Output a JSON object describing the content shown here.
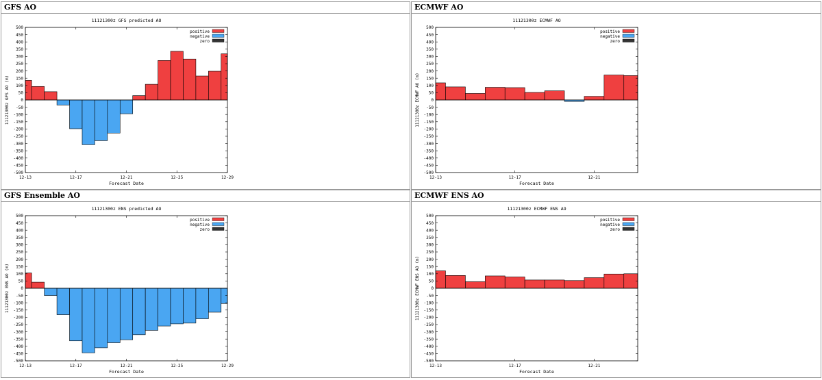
{
  "panels": [
    {
      "heading": "GFS AO",
      "chart_data": {
        "type": "bar",
        "title": "11121300z GFS predicted AO",
        "xlabel": "Forecast Date",
        "ylabel": "11121300z GFS AO (m)",
        "ylim": [
          -500,
          500
        ],
        "yticks": [
          500,
          450,
          400,
          350,
          300,
          250,
          200,
          150,
          100,
          50,
          0,
          -50,
          -100,
          -150,
          -200,
          -250,
          -300,
          -350,
          -400,
          -450,
          -500
        ],
        "xticks": [
          {
            "label": "12-13",
            "day": 0
          },
          {
            "label": "12-17",
            "day": 4
          },
          {
            "label": "12-21",
            "day": 8
          },
          {
            "label": "12-25",
            "day": 12
          },
          {
            "label": "12-29",
            "day": 16
          }
        ],
        "x_range": [
          0,
          16
        ],
        "legend": [
          {
            "label": "positive",
            "color": "#ef4040"
          },
          {
            "label": "negative",
            "color": "#4aa6f2"
          },
          {
            "label": "zero",
            "color": "#333333"
          }
        ],
        "legend_position": "top-right",
        "bars": [
          {
            "start": 0,
            "end": 0.5,
            "value": 135
          },
          {
            "start": 0.5,
            "end": 1.5,
            "value": 93
          },
          {
            "start": 1.5,
            "end": 2.5,
            "value": 57
          },
          {
            "start": 2.5,
            "end": 3.5,
            "value": -35
          },
          {
            "start": 3.5,
            "end": 4.5,
            "value": -198
          },
          {
            "start": 4.5,
            "end": 5.5,
            "value": -308
          },
          {
            "start": 5.5,
            "end": 6.5,
            "value": -280
          },
          {
            "start": 6.5,
            "end": 7.5,
            "value": -228
          },
          {
            "start": 7.5,
            "end": 8.5,
            "value": -95
          },
          {
            "start": 8.5,
            "end": 9.5,
            "value": 30
          },
          {
            "start": 9.5,
            "end": 10.5,
            "value": 108
          },
          {
            "start": 10.5,
            "end": 11.5,
            "value": 272
          },
          {
            "start": 11.5,
            "end": 12.5,
            "value": 335
          },
          {
            "start": 12.5,
            "end": 13.5,
            "value": 282
          },
          {
            "start": 13.5,
            "end": 14.5,
            "value": 165
          },
          {
            "start": 14.5,
            "end": 15.5,
            "value": 198
          },
          {
            "start": 15.5,
            "end": 16,
            "value": 318
          }
        ]
      }
    },
    {
      "heading": "ECMWF AO",
      "chart_data": {
        "type": "bar",
        "title": "11121300z ECMWF AO",
        "xlabel": "Forecast Date",
        "ylabel": "11121300z ECMWF AO (m)",
        "ylim": [
          -500,
          500
        ],
        "yticks": [
          500,
          450,
          400,
          350,
          300,
          250,
          200,
          150,
          100,
          50,
          0,
          -50,
          -100,
          -150,
          -200,
          -250,
          -300,
          -350,
          -400,
          -450,
          -500
        ],
        "xticks": [
          {
            "label": "12-13",
            "day": 0
          },
          {
            "label": "12-17",
            "day": 4
          },
          {
            "label": "12-21",
            "day": 8
          }
        ],
        "x_range": [
          0,
          10.2
        ],
        "legend": [
          {
            "label": "positive",
            "color": "#ef4040"
          },
          {
            "label": "negative",
            "color": "#4aa6f2"
          },
          {
            "label": "zero",
            "color": "#333333"
          }
        ],
        "legend_position": "top-right",
        "bars": [
          {
            "start": 0,
            "end": 0.5,
            "value": 118
          },
          {
            "start": 0.5,
            "end": 1.5,
            "value": 90
          },
          {
            "start": 1.5,
            "end": 2.5,
            "value": 45
          },
          {
            "start": 2.5,
            "end": 3.5,
            "value": 87
          },
          {
            "start": 3.5,
            "end": 4.5,
            "value": 85
          },
          {
            "start": 4.5,
            "end": 5.5,
            "value": 52
          },
          {
            "start": 5.5,
            "end": 6.5,
            "value": 63
          },
          {
            "start": 6.5,
            "end": 7.5,
            "value": -10
          },
          {
            "start": 7.5,
            "end": 8.5,
            "value": 25
          },
          {
            "start": 8.5,
            "end": 9.5,
            "value": 172
          },
          {
            "start": 9.5,
            "end": 10.2,
            "value": 168
          }
        ]
      }
    },
    {
      "heading": "GFS Ensemble AO",
      "chart_data": {
        "type": "bar",
        "title": "11121300z ENS predicted AO",
        "xlabel": "Forecast Date",
        "ylabel": "11121300z ENS AO (m)",
        "ylim": [
          -500,
          500
        ],
        "yticks": [
          500,
          450,
          400,
          350,
          300,
          250,
          200,
          150,
          100,
          50,
          0,
          -50,
          -100,
          -150,
          -200,
          -250,
          -300,
          -350,
          -400,
          -450,
          -500
        ],
        "xticks": [
          {
            "label": "12-13",
            "day": 0
          },
          {
            "label": "12-17",
            "day": 4
          },
          {
            "label": "12-21",
            "day": 8
          },
          {
            "label": "12-25",
            "day": 12
          },
          {
            "label": "12-29",
            "day": 16
          }
        ],
        "x_range": [
          0,
          16
        ],
        "legend": [
          {
            "label": "positive",
            "color": "#ef4040"
          },
          {
            "label": "negative",
            "color": "#4aa6f2"
          },
          {
            "label": "zero",
            "color": "#333333"
          }
        ],
        "legend_position": "top-right",
        "bars": [
          {
            "start": 0,
            "end": 0.5,
            "value": 105
          },
          {
            "start": 0.5,
            "end": 1.5,
            "value": 42
          },
          {
            "start": 1.5,
            "end": 2.5,
            "value": -50
          },
          {
            "start": 2.5,
            "end": 3.5,
            "value": -182
          },
          {
            "start": 3.5,
            "end": 4.5,
            "value": -362
          },
          {
            "start": 4.5,
            "end": 5.5,
            "value": -445
          },
          {
            "start": 5.5,
            "end": 6.5,
            "value": -410
          },
          {
            "start": 6.5,
            "end": 7.5,
            "value": -375
          },
          {
            "start": 7.5,
            "end": 8.5,
            "value": -355
          },
          {
            "start": 8.5,
            "end": 9.5,
            "value": -320
          },
          {
            "start": 9.5,
            "end": 10.5,
            "value": -290
          },
          {
            "start": 10.5,
            "end": 11.5,
            "value": -260
          },
          {
            "start": 11.5,
            "end": 12.5,
            "value": -245
          },
          {
            "start": 12.5,
            "end": 13.5,
            "value": -240
          },
          {
            "start": 13.5,
            "end": 14.5,
            "value": -210
          },
          {
            "start": 14.5,
            "end": 15.5,
            "value": -165
          },
          {
            "start": 15.5,
            "end": 16,
            "value": -105
          }
        ]
      }
    },
    {
      "heading": "ECMWF ENS AO",
      "chart_data": {
        "type": "bar",
        "title": "11121300z ECMWF ENS AO",
        "xlabel": "Forecast Date",
        "ylabel": "11121300z ECMWF ENS AO (m)",
        "ylim": [
          -500,
          500
        ],
        "yticks": [
          500,
          450,
          400,
          350,
          300,
          250,
          200,
          150,
          100,
          50,
          0,
          -50,
          -100,
          -150,
          -200,
          -250,
          -300,
          -350,
          -400,
          -450,
          -500
        ],
        "xticks": [
          {
            "label": "12-13",
            "day": 0
          },
          {
            "label": "12-17",
            "day": 4
          },
          {
            "label": "12-21",
            "day": 8
          }
        ],
        "x_range": [
          0,
          10.2
        ],
        "legend": [
          {
            "label": "positive",
            "color": "#ef4040"
          },
          {
            "label": "negative",
            "color": "#4aa6f2"
          },
          {
            "label": "zero",
            "color": "#333333"
          }
        ],
        "legend_position": "top-right",
        "bars": [
          {
            "start": 0,
            "end": 0.5,
            "value": 120
          },
          {
            "start": 0.5,
            "end": 1.5,
            "value": 88
          },
          {
            "start": 1.5,
            "end": 2.5,
            "value": 45
          },
          {
            "start": 2.5,
            "end": 3.5,
            "value": 85
          },
          {
            "start": 3.5,
            "end": 4.5,
            "value": 78
          },
          {
            "start": 4.5,
            "end": 5.5,
            "value": 57
          },
          {
            "start": 5.5,
            "end": 6.5,
            "value": 57
          },
          {
            "start": 6.5,
            "end": 7.5,
            "value": 53
          },
          {
            "start": 7.5,
            "end": 8.5,
            "value": 73
          },
          {
            "start": 8.5,
            "end": 9.5,
            "value": 98
          },
          {
            "start": 9.5,
            "end": 10.2,
            "value": 100
          }
        ]
      }
    }
  ]
}
